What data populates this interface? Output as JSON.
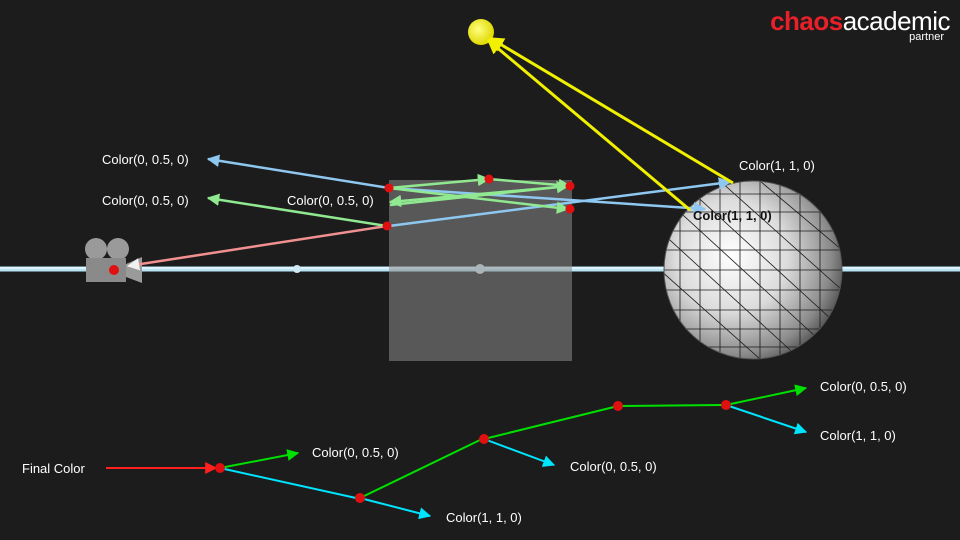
{
  "brand": {
    "name_primary": "chaos",
    "name_secondary": "academic",
    "tagline": "partner"
  },
  "scene_labels": {
    "ray_left_top": "Color(0, 0.5, 0)",
    "ray_left_mid": "Color(0, 0.5, 0)",
    "ray_mid": "Color(0, 0.5, 0)",
    "light_top": "Color(1, 1, 0)",
    "sphere_hit": "Color(1, 1, 0)"
  },
  "tree_labels": {
    "root": "Final Color",
    "node1_refl": "Color(0, 0.5, 0)",
    "node2_refr": "Color(1, 1, 0)",
    "node3_refr": "Color(0, 0.5, 0)",
    "node5_refl": "Color(0, 0.5, 0)",
    "node5_refr": "Color(1, 1, 0)"
  },
  "colors": {
    "background": "#1c1c1c",
    "brand_red": "#e8202a",
    "hit_point": "#e01010",
    "reflection_ray": "#00e000",
    "refraction_ray": "#00e5ff",
    "primary_ray": "#ff2020",
    "shadow_ray": "#f0f000",
    "scene_blue_ray": "#8ec8f0",
    "scene_green_ray": "#90e890",
    "scene_red_ray": "#f09090"
  },
  "icons": [
    "camera-icon",
    "light-icon",
    "sphere-icon"
  ]
}
